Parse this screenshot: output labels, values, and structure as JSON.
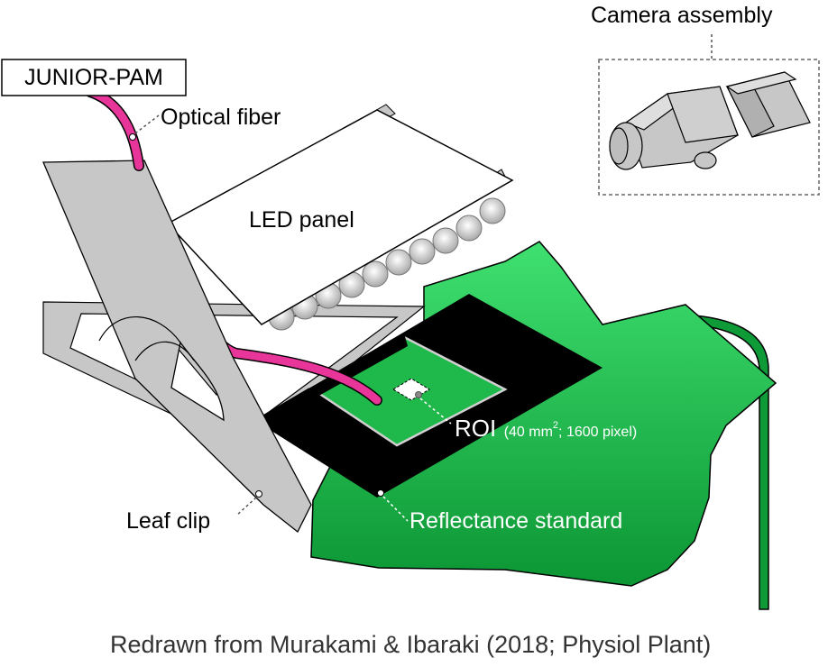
{
  "labels": {
    "camera": "Camera assembly",
    "junior_pam": "JUNIOR-PAM",
    "optical_fiber": "Optical fiber",
    "led_panel": "LED panel",
    "roi_main": "ROI",
    "roi_detail_open": "(40 mm",
    "roi_detail_sup": "2",
    "roi_detail_close": "; 1600 pixel)",
    "leaf_clip": "Leaf clip",
    "reflectance_standard": "Reflectance standard"
  },
  "credit": "Redrawn from Murakami & Ibaraki (2018; Physiol Plant)",
  "colors": {
    "fiber": "#e8359a",
    "leaf_light": "#3fdc6b",
    "leaf_dark": "#0d9a37",
    "clip_gray": "#c7c7c7",
    "standard_black": "#000000",
    "led_white": "#ffffff"
  }
}
